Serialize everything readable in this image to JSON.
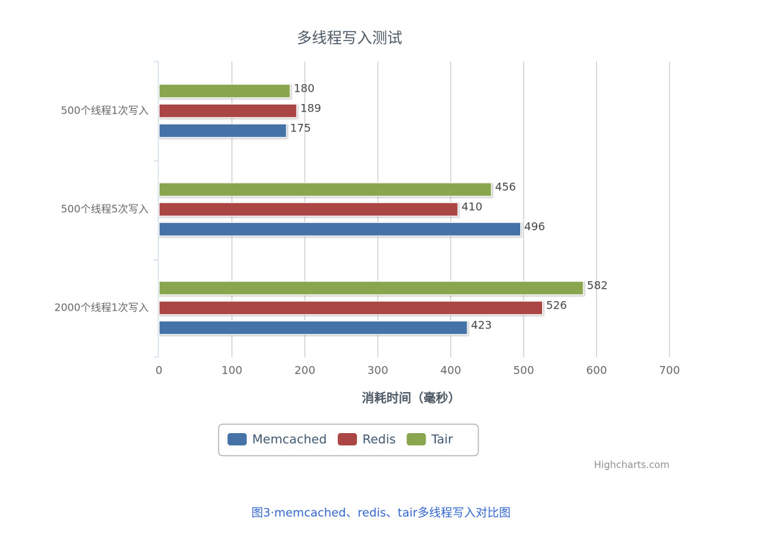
{
  "chart_data": {
    "type": "bar",
    "horizontal": true,
    "title": "多线程写入测试",
    "x_label": "消耗时间（毫秒）",
    "credits": "Highcharts.com",
    "categories": [
      "500个线程1次写入",
      "500个线程5次写入",
      "2000个线程1次写入"
    ],
    "series": [
      {
        "name": "Memcached",
        "color": "#4572A7",
        "values": [
          175,
          496,
          423
        ]
      },
      {
        "name": "Redis",
        "color": "#AA4643",
        "values": [
          189,
          410,
          526
        ]
      },
      {
        "name": "Tair",
        "color": "#89A54E",
        "values": [
          180,
          456,
          582
        ]
      }
    ],
    "xlim": [
      0,
      700
    ],
    "xticks": [
      0,
      100,
      200,
      300,
      400,
      500,
      600,
      700
    ],
    "grid": true
  },
  "caption": "图3·memcached、redis、tair多线程写入对比图"
}
